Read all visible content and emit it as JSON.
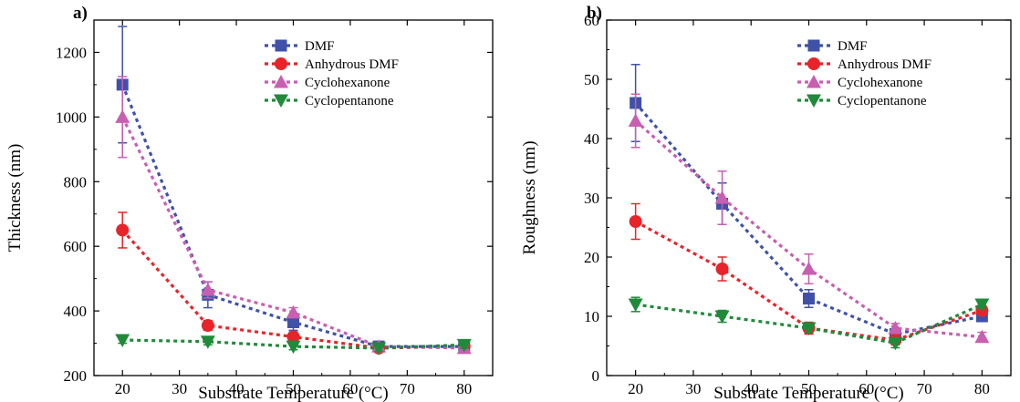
{
  "chart_data": [
    {
      "type": "line",
      "panel_label": "a)",
      "xlabel": "Substrate Temperature (°C)",
      "ylabel": "Thickness (nm)",
      "xlim": [
        15,
        85
      ],
      "ylim": [
        200,
        1300
      ],
      "xticks": [
        20,
        30,
        40,
        50,
        60,
        70,
        80
      ],
      "yticks": [
        200,
        400,
        600,
        800,
        1000,
        1200
      ],
      "legend_position": "top-right",
      "line_style": "dotted",
      "grid": false,
      "x": [
        20,
        35,
        50,
        65,
        80
      ],
      "series": [
        {
          "name": "DMF",
          "color": "#3f52a8",
          "marker": "square",
          "values": [
            1100,
            450,
            365,
            290,
            290
          ],
          "errors": [
            180,
            40,
            25,
            10,
            10
          ]
        },
        {
          "name": "Anhydrous DMF",
          "color": "#e8242a",
          "marker": "circle",
          "values": [
            650,
            355,
            320,
            285,
            290
          ],
          "errors": [
            55,
            15,
            15,
            10,
            10
          ]
        },
        {
          "name": "Cyclohexanone",
          "color": "#c85fb0",
          "marker": "triangle-up",
          "values": [
            1000,
            465,
            395,
            290,
            285
          ],
          "errors": [
            125,
            25,
            15,
            10,
            10
          ]
        },
        {
          "name": "Cyclopentanone",
          "color": "#1f8a3a",
          "marker": "triangle-down",
          "values": [
            310,
            305,
            290,
            285,
            295
          ],
          "errors": [
            10,
            10,
            10,
            10,
            10
          ]
        }
      ]
    },
    {
      "type": "line",
      "panel_label": "b)",
      "xlabel": "Substrate Temperature (°C)",
      "ylabel": "Roughness (nm)",
      "xlim": [
        15,
        85
      ],
      "ylim": [
        0,
        60
      ],
      "xticks": [
        20,
        30,
        40,
        50,
        60,
        70,
        80
      ],
      "yticks": [
        0,
        10,
        20,
        30,
        40,
        50,
        60
      ],
      "legend_position": "top-right",
      "line_style": "dotted",
      "grid": false,
      "x": [
        20,
        35,
        50,
        65,
        80
      ],
      "series": [
        {
          "name": "DMF",
          "color": "#3f52a8",
          "marker": "square",
          "values": [
            46,
            29,
            13,
            7,
            10
          ],
          "errors": [
            6.5,
            3.5,
            1.5,
            0.8,
            0.8
          ]
        },
        {
          "name": "Anhydrous DMF",
          "color": "#e8242a",
          "marker": "circle",
          "values": [
            26,
            18,
            8,
            6,
            11
          ],
          "errors": [
            3,
            2,
            1,
            0.8,
            0.8
          ]
        },
        {
          "name": "Cyclohexanone",
          "color": "#c85fb0",
          "marker": "triangle-up",
          "values": [
            43,
            30,
            18,
            8,
            6.5
          ],
          "errors": [
            4.5,
            4.5,
            2.5,
            0.8,
            0.8
          ]
        },
        {
          "name": "Cyclopentanone",
          "color": "#1f8a3a",
          "marker": "triangle-down",
          "values": [
            12,
            10,
            8,
            5.5,
            12
          ],
          "errors": [
            1.2,
            1,
            0.8,
            0.8,
            0.8
          ]
        }
      ]
    }
  ]
}
